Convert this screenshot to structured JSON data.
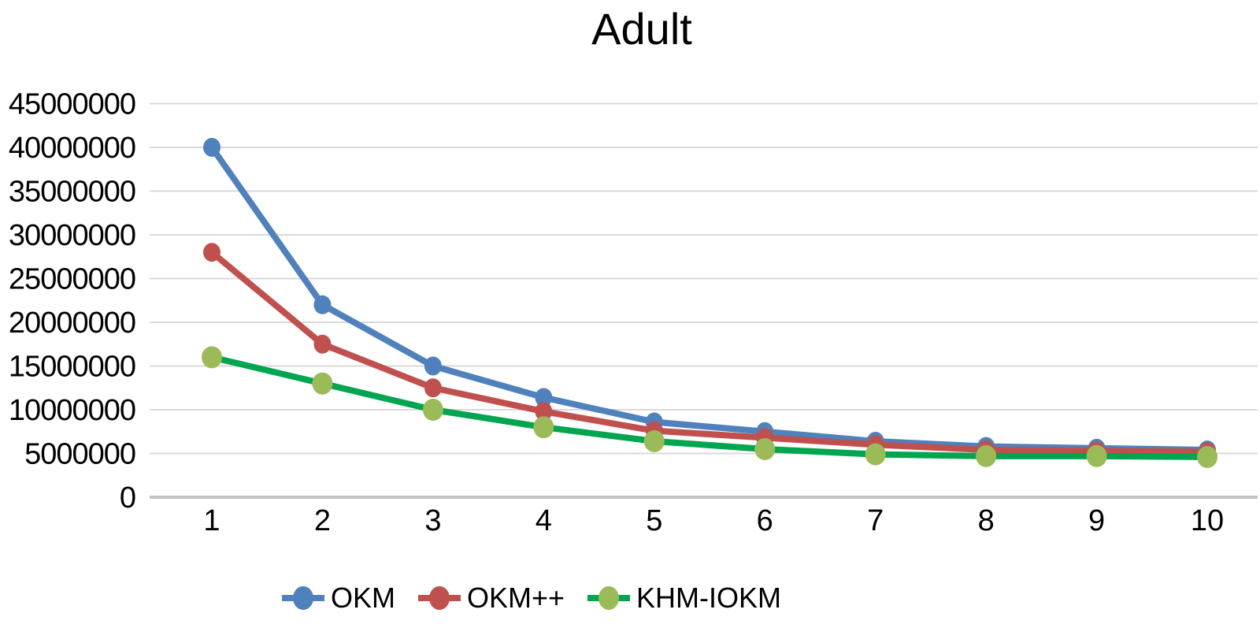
{
  "chart_data": {
    "type": "line",
    "title": "Adult",
    "xlabel": "",
    "ylabel": "",
    "x": [
      1,
      2,
      3,
      4,
      5,
      6,
      7,
      8,
      9,
      10
    ],
    "xtick_labels": [
      "1",
      "2",
      "3",
      "4",
      "5",
      "6",
      "7",
      "8",
      "9",
      "10"
    ],
    "ylim": [
      0,
      45000000
    ],
    "ytick_step": 5000000,
    "ytick_labels": [
      "0",
      "5000000",
      "10000000",
      "15000000",
      "20000000",
      "25000000",
      "30000000",
      "35000000",
      "40000000",
      "45000000"
    ],
    "grid": "horizontal-only",
    "legend_position": "bottom-center",
    "series": [
      {
        "name": "OKM",
        "color": "#4F81BD",
        "marker_color": "#4F81BD",
        "values": [
          40000000,
          22000000,
          15000000,
          11400000,
          8600000,
          7500000,
          6400000,
          5800000,
          5600000,
          5400000
        ]
      },
      {
        "name": "OKM++",
        "color": "#C0504D",
        "marker_color": "#C0504D",
        "values": [
          28000000,
          17500000,
          12500000,
          9800000,
          7600000,
          6800000,
          6000000,
          5400000,
          5300000,
          5200000
        ]
      },
      {
        "name": "KHM-IOKM",
        "color": "#00A64F",
        "marker_color": "#9BBB59",
        "values": [
          16000000,
          13000000,
          10000000,
          8000000,
          6400000,
          5500000,
          4900000,
          4700000,
          4700000,
          4600000
        ]
      }
    ],
    "colors": {
      "gridline": "#D9D9D9",
      "zero_line": "#C3C3C3",
      "axis_text": "#000000",
      "background": "#FFFFFF"
    }
  }
}
